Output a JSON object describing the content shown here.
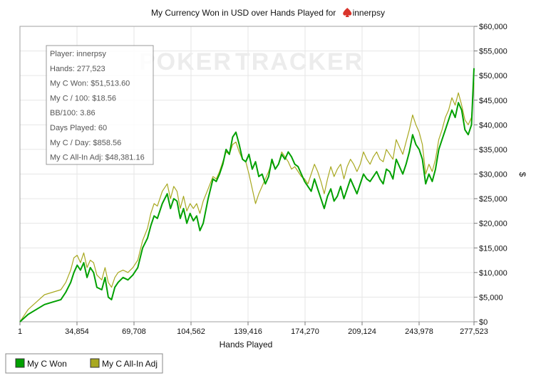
{
  "title": {
    "prefix": "My Currency Won in USD over Hands Played for",
    "player": "innerpsy",
    "icon": "spade-icon"
  },
  "watermark": {
    "part1": "POKER",
    "part2": "TRACKER"
  },
  "stats_box": {
    "lines": [
      "Player: innerpsy",
      "Hands: 277,523",
      "My C Won: $51,513.60",
      "My C / 100: $18.56",
      "BB/100: 3.86",
      "Days Played: 60",
      "My C / Day: $858.56",
      "My C All-In Adj: $48,381.16"
    ]
  },
  "chart_data": {
    "type": "line",
    "xlabel": "Hands Played",
    "ylabel": "$",
    "x_ticks": [
      "1",
      "34,854",
      "69,708",
      "104,562",
      "139,416",
      "174,270",
      "209,124",
      "243,978",
      "277,523"
    ],
    "x_tick_values": [
      1,
      34854,
      69708,
      104562,
      139416,
      174270,
      209124,
      243978,
      277523
    ],
    "y_ticks": [
      "$0",
      "$5,000",
      "$10,000",
      "$15,000",
      "$20,000",
      "$25,000",
      "$30,000",
      "$35,000",
      "$40,000",
      "$45,000",
      "$50,000",
      "$55,000",
      "$60,000"
    ],
    "xlim": [
      1,
      277523
    ],
    "ylim": [
      0,
      60000
    ],
    "grid": true,
    "legend_position": "bottom-left",
    "series": [
      {
        "name": "My C Won",
        "color": "#00A000",
        "x": [
          1,
          5000,
          10000,
          15000,
          20000,
          25000,
          28000,
          31000,
          33000,
          35000,
          37000,
          39000,
          41000,
          43000,
          45000,
          47000,
          50000,
          52000,
          54000,
          56000,
          58000,
          60000,
          63000,
          66000,
          69000,
          72000,
          75000,
          78000,
          80000,
          82000,
          84000,
          87000,
          90000,
          92000,
          94000,
          96000,
          98000,
          100000,
          102000,
          104000,
          106000,
          108000,
          110000,
          112000,
          115000,
          118000,
          120000,
          122000,
          124000,
          126000,
          128000,
          130000,
          132000,
          134000,
          136000,
          138000,
          140000,
          142000,
          144000,
          146000,
          148000,
          150000,
          152000,
          154000,
          156000,
          158000,
          160000,
          162000,
          164000,
          166000,
          168000,
          170000,
          172000,
          174000,
          176000,
          178000,
          180000,
          182000,
          184000,
          186000,
          188000,
          190000,
          192000,
          194000,
          196000,
          198000,
          200000,
          202000,
          204000,
          206000,
          208000,
          210000,
          212000,
          214000,
          216000,
          218000,
          220000,
          222000,
          224000,
          226000,
          228000,
          230000,
          232000,
          234000,
          236000,
          238000,
          240000,
          242000,
          244000,
          246000,
          248000,
          250000,
          252000,
          254000,
          256000,
          258000,
          260000,
          262000,
          264000,
          266000,
          268000,
          270000,
          272000,
          274000,
          276000,
          277523
        ],
        "y": [
          0,
          1500,
          2500,
          3500,
          4000,
          4500,
          6000,
          8000,
          10000,
          11500,
          10500,
          12000,
          9000,
          11000,
          10000,
          7000,
          6500,
          9000,
          5000,
          4500,
          7000,
          8000,
          9000,
          8500,
          9500,
          11000,
          15000,
          17000,
          19500,
          21500,
          21000,
          24000,
          26000,
          23000,
          25000,
          24500,
          21000,
          23000,
          20000,
          22000,
          20500,
          21500,
          18500,
          20000,
          25000,
          29000,
          28500,
          30000,
          32000,
          35000,
          34000,
          37500,
          38500,
          36000,
          33000,
          32500,
          34000,
          31000,
          32500,
          29500,
          30000,
          28000,
          29500,
          33000,
          31000,
          32000,
          34000,
          33000,
          34500,
          33500,
          32000,
          31500,
          30000,
          28500,
          27500,
          26500,
          29000,
          27000,
          25000,
          23000,
          25500,
          27000,
          24500,
          25500,
          27500,
          25000,
          27000,
          29000,
          27500,
          26000,
          28000,
          30000,
          29000,
          28500,
          29500,
          30500,
          29000,
          28000,
          31000,
          30500,
          29000,
          33000,
          31500,
          30000,
          32000,
          34500,
          38000,
          36000,
          35000,
          33000,
          28000,
          30000,
          28500,
          31000,
          35000,
          37000,
          39000,
          41000,
          43000,
          41500,
          44500,
          43000,
          39000,
          38000,
          40000,
          51500
        ]
      },
      {
        "name": "My C All-In Adj",
        "color": "#A8A820",
        "x": [
          1,
          5000,
          10000,
          15000,
          20000,
          25000,
          28000,
          31000,
          33000,
          35000,
          37000,
          39000,
          41000,
          43000,
          45000,
          47000,
          50000,
          52000,
          54000,
          56000,
          58000,
          60000,
          63000,
          66000,
          69000,
          72000,
          75000,
          78000,
          80000,
          82000,
          84000,
          87000,
          90000,
          92000,
          94000,
          96000,
          98000,
          100000,
          102000,
          104000,
          106000,
          108000,
          110000,
          112000,
          115000,
          118000,
          120000,
          122000,
          124000,
          126000,
          128000,
          130000,
          132000,
          134000,
          136000,
          138000,
          140000,
          142000,
          144000,
          146000,
          148000,
          150000,
          152000,
          154000,
          156000,
          158000,
          160000,
          162000,
          164000,
          166000,
          168000,
          170000,
          172000,
          174000,
          176000,
          178000,
          180000,
          182000,
          184000,
          186000,
          188000,
          190000,
          192000,
          194000,
          196000,
          198000,
          200000,
          202000,
          204000,
          206000,
          208000,
          210000,
          212000,
          214000,
          216000,
          218000,
          220000,
          222000,
          224000,
          226000,
          228000,
          230000,
          232000,
          234000,
          236000,
          238000,
          240000,
          242000,
          244000,
          246000,
          248000,
          250000,
          252000,
          254000,
          256000,
          258000,
          260000,
          262000,
          264000,
          266000,
          268000,
          270000,
          272000,
          274000,
          276000,
          277523
        ],
        "y": [
          0,
          2500,
          4000,
          5500,
          6000,
          6500,
          8000,
          10500,
          13000,
          13500,
          12000,
          14000,
          11000,
          12500,
          12000,
          9500,
          8500,
          11000,
          8000,
          7000,
          9000,
          10000,
          10500,
          10000,
          11000,
          12500,
          16500,
          19000,
          22000,
          24000,
          23500,
          26500,
          28000,
          25000,
          27500,
          26500,
          23000,
          25500,
          22500,
          24000,
          23000,
          24000,
          22000,
          24500,
          27000,
          29500,
          29000,
          30500,
          32500,
          34500,
          34000,
          36000,
          36500,
          34500,
          33000,
          32500,
          30000,
          27000,
          24000,
          26000,
          27500,
          29000,
          30500,
          32500,
          31000,
          32000,
          34500,
          33500,
          32500,
          31000,
          31500,
          30500,
          29500,
          29000,
          28000,
          30000,
          32000,
          30500,
          28500,
          26000,
          29000,
          31500,
          29500,
          31000,
          32000,
          29000,
          31500,
          33000,
          32000,
          30500,
          32000,
          34500,
          33000,
          32000,
          33500,
          34500,
          33000,
          32500,
          35000,
          34000,
          33000,
          37000,
          35500,
          34000,
          36500,
          39000,
          42000,
          40000,
          38500,
          36000,
          30000,
          32000,
          30500,
          33000,
          37000,
          39000,
          41500,
          43000,
          45500,
          44000,
          46500,
          44000,
          41000,
          40000,
          41500,
          48500
        ]
      }
    ]
  }
}
